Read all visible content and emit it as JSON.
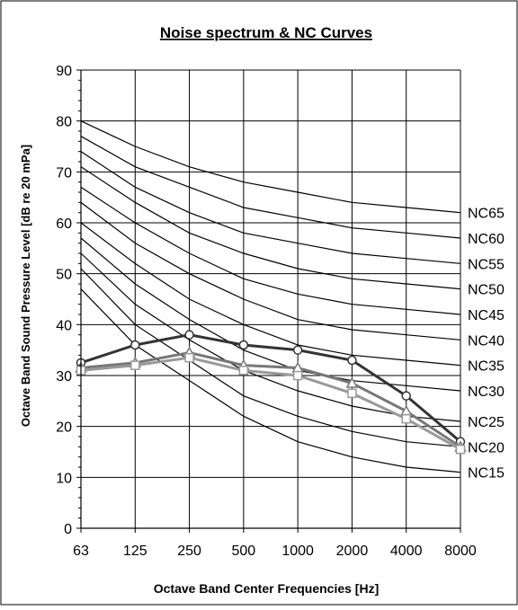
{
  "chart_data": {
    "type": "line",
    "title": "Noise spectrum & NC Curves",
    "xlabel": "Octave Band Center Frequencies [Hz]",
    "ylabel": "Octave Band Sound Pressure Level [dB re 20 mPa]",
    "categories": [
      "63",
      "125",
      "250",
      "500",
      "1000",
      "2000",
      "4000",
      "8000"
    ],
    "ylim": [
      0,
      90
    ],
    "yticks": [
      "0",
      "10",
      "20",
      "30",
      "40",
      "50",
      "60",
      "70",
      "80",
      "90"
    ],
    "grid": true,
    "nc_curves": [
      {
        "name": "NC65",
        "values": [
          80,
          75,
          71,
          68,
          66,
          64,
          63,
          62
        ]
      },
      {
        "name": "NC60",
        "values": [
          77,
          71,
          67,
          63,
          61,
          59,
          58,
          57
        ]
      },
      {
        "name": "NC55",
        "values": [
          74,
          67,
          62,
          58,
          56,
          54,
          53,
          52
        ]
      },
      {
        "name": "NC50",
        "values": [
          71,
          64,
          58,
          54,
          51,
          49,
          48,
          47
        ]
      },
      {
        "name": "NC45",
        "values": [
          67,
          60,
          54,
          49,
          46,
          44,
          43,
          42
        ]
      },
      {
        "name": "NC40",
        "values": [
          64,
          56,
          50,
          45,
          41,
          39,
          38,
          37
        ]
      },
      {
        "name": "NC35",
        "values": [
          60,
          52,
          45,
          40,
          36,
          34,
          33,
          32
        ]
      },
      {
        "name": "NC30",
        "values": [
          57,
          48,
          41,
          35,
          31,
          29,
          28,
          27
        ]
      },
      {
        "name": "NC25",
        "values": [
          54,
          44,
          37,
          31,
          27,
          24,
          22,
          21
        ]
      },
      {
        "name": "NC20",
        "values": [
          51,
          40,
          33,
          26,
          22,
          19,
          17,
          16
        ]
      },
      {
        "name": "NC15",
        "values": [
          47,
          36,
          29,
          22,
          17,
          14,
          12,
          11
        ]
      }
    ],
    "series": [
      {
        "marker": "circle",
        "color": "#333333",
        "values": [
          32.5,
          36,
          38,
          36,
          35,
          33,
          26,
          17
        ]
      },
      {
        "marker": "triangle",
        "color": "#777777",
        "values": [
          31.5,
          32.5,
          34.5,
          32,
          31.5,
          28.5,
          23,
          16
        ]
      },
      {
        "marker": "square",
        "color": "#999999",
        "values": [
          31,
          32,
          33.5,
          31,
          30,
          26.5,
          21.5,
          15.5
        ]
      }
    ]
  }
}
